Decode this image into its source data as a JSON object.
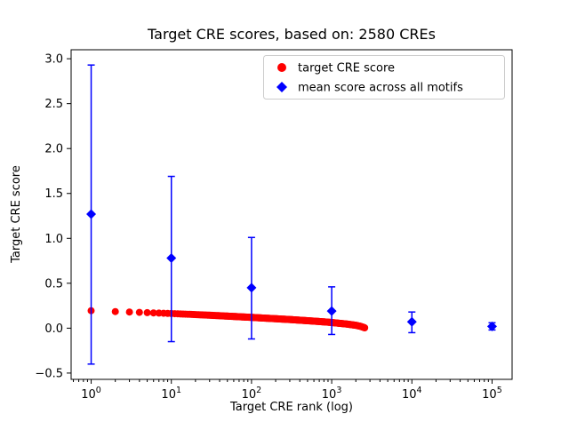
{
  "chart_data": {
    "type": "scatter",
    "title": "Target CRE scores, based on: 2580 CREs",
    "xlabel": "Target CRE rank (log)",
    "ylabel": "Target CRE score",
    "x_scale": "log10",
    "xlim_log10": [
      -0.25,
      5.25
    ],
    "ylim": [
      -0.57,
      3.1
    ],
    "x_ticks": [
      1,
      10,
      100,
      1000,
      10000,
      100000
    ],
    "y_ticks": [
      -0.5,
      0.0,
      0.5,
      1.0,
      1.5,
      2.0,
      2.5,
      3.0
    ],
    "grid": false,
    "legend": {
      "position": "upper right",
      "items": [
        {
          "label": "target CRE score",
          "marker": "circle",
          "color": "#ff0000"
        },
        {
          "label": "mean score across all motifs",
          "marker": "diamond",
          "color": "#0000ff"
        }
      ]
    },
    "series": [
      {
        "name": "target CRE score",
        "marker": "circle",
        "color": "#ff0000",
        "n_points": 2580,
        "x_range": [
          1,
          2580
        ],
        "sampled_points": [
          [
            1,
            0.195
          ],
          [
            2,
            0.185
          ],
          [
            3,
            0.18
          ],
          [
            4,
            0.176
          ],
          [
            5,
            0.173
          ],
          [
            7,
            0.168
          ],
          [
            10,
            0.163
          ],
          [
            15,
            0.156
          ],
          [
            20,
            0.151
          ],
          [
            30,
            0.144
          ],
          [
            50,
            0.134
          ],
          [
            70,
            0.127
          ],
          [
            100,
            0.12
          ],
          [
            150,
            0.111
          ],
          [
            200,
            0.105
          ],
          [
            300,
            0.096
          ],
          [
            500,
            0.083
          ],
          [
            700,
            0.074
          ],
          [
            1000,
            0.063
          ],
          [
            1500,
            0.047
          ],
          [
            2000,
            0.032
          ],
          [
            2300,
            0.02
          ],
          [
            2580,
            0.004
          ]
        ]
      },
      {
        "name": "mean score across all motifs",
        "marker": "diamond",
        "color": "#0000ff",
        "points": [
          {
            "x": 1,
            "y": 1.27,
            "lo": -0.4,
            "hi": 2.93
          },
          {
            "x": 10,
            "y": 0.78,
            "lo": -0.15,
            "hi": 1.69
          },
          {
            "x": 100,
            "y": 0.45,
            "lo": -0.12,
            "hi": 1.01
          },
          {
            "x": 1000,
            "y": 0.19,
            "lo": -0.07,
            "hi": 0.46
          },
          {
            "x": 10000,
            "y": 0.07,
            "lo": -0.05,
            "hi": 0.18
          },
          {
            "x": 100000,
            "y": 0.02,
            "lo": -0.02,
            "hi": 0.06
          }
        ]
      }
    ]
  }
}
